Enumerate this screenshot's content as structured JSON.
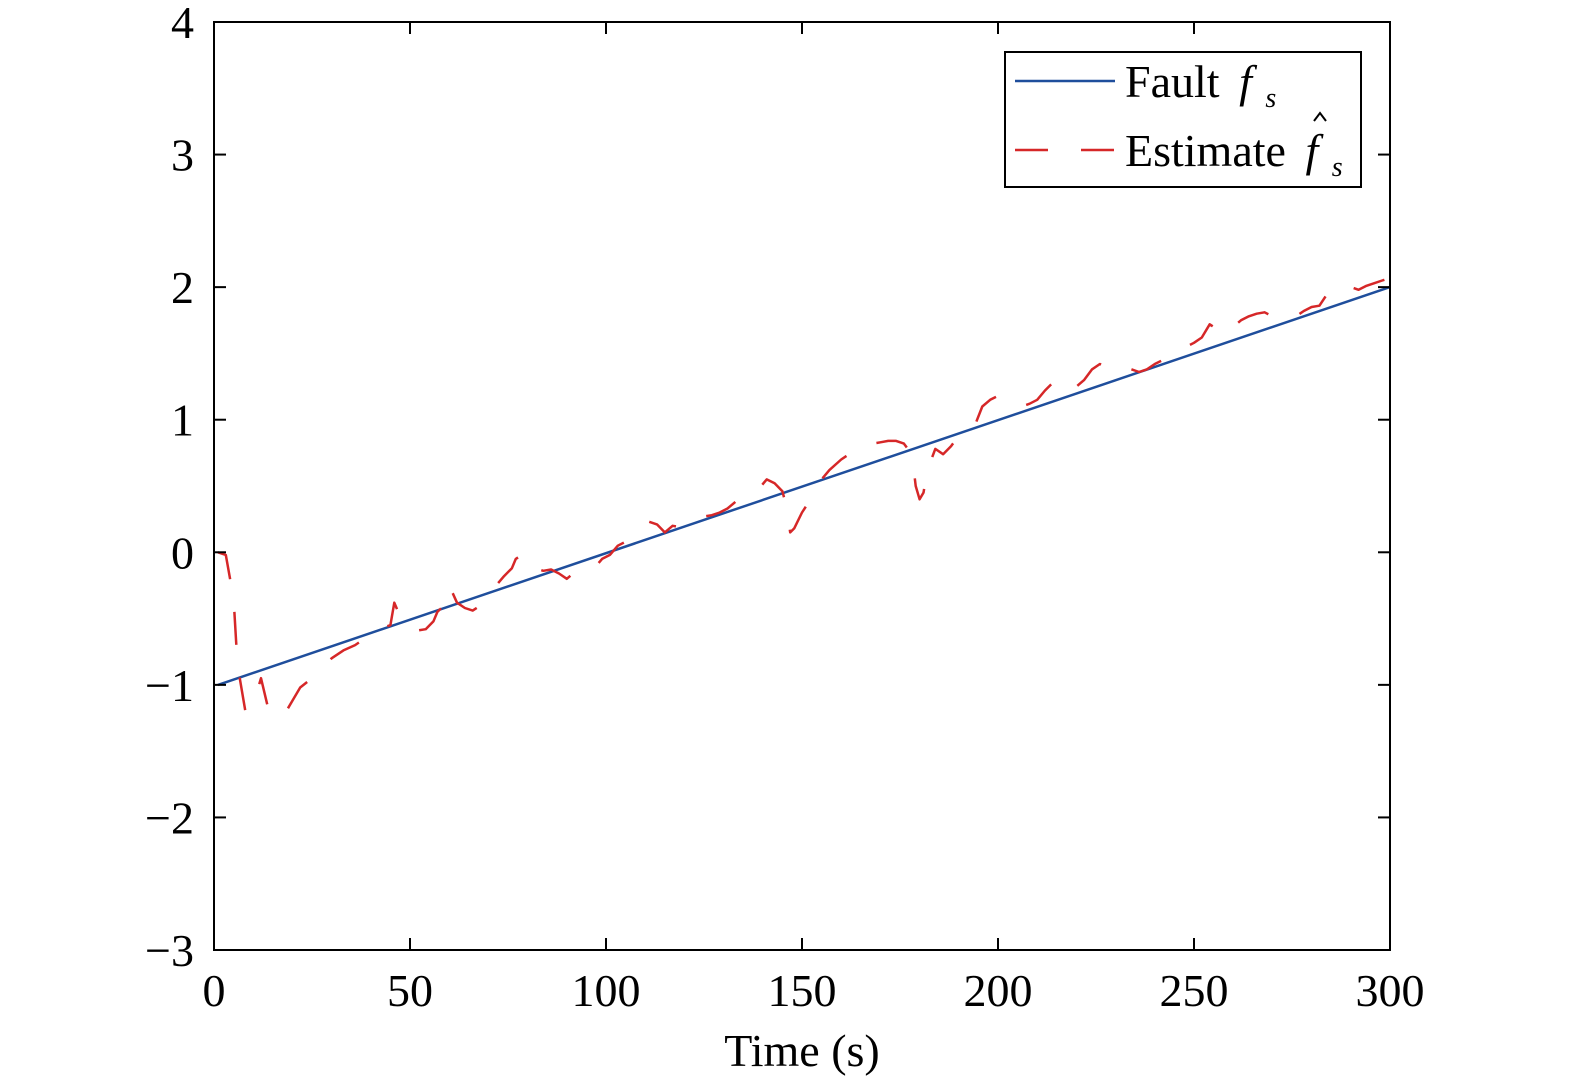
{
  "chart_data": {
    "type": "line",
    "xlabel": "Time (s)",
    "ylabel": "",
    "xlim": [
      0,
      300
    ],
    "ylim": [
      -3,
      4
    ],
    "xticks": [
      0,
      50,
      100,
      150,
      200,
      250,
      300
    ],
    "yticks": [
      -3,
      -2,
      -1,
      0,
      1,
      2,
      3,
      4
    ],
    "xtick_labels": [
      "0",
      "50",
      "100",
      "150",
      "200",
      "250",
      "300"
    ],
    "ytick_labels": [
      "−3",
      "−2",
      "−1",
      "0",
      "1",
      "2",
      "3",
      "4"
    ],
    "grid": false,
    "legend_position": "top-right",
    "series": [
      {
        "name": "Fault",
        "symbol": "f",
        "subscript": "s",
        "hat": false,
        "color": "#1f4e9c",
        "style": "solid",
        "x": [
          1,
          300
        ],
        "y": [
          -1.0,
          2.0
        ]
      },
      {
        "name": "Estimate",
        "symbol": "f",
        "subscript": "s",
        "hat": true,
        "color": "#d62728",
        "style": "dashed",
        "x": [
          1,
          3,
          5,
          6,
          8,
          10,
          12,
          14,
          16,
          18,
          20,
          22,
          25,
          28,
          30,
          33,
          36,
          39,
          42,
          45,
          46,
          48,
          50,
          52,
          54,
          56,
          57,
          58,
          60,
          62,
          64,
          66,
          68,
          70,
          72,
          74,
          76,
          77,
          78,
          80,
          82,
          84,
          86,
          88,
          90,
          92,
          95,
          97,
          99,
          101,
          103,
          105,
          107,
          109,
          111,
          113,
          115,
          117,
          119,
          121,
          123,
          125,
          127,
          129,
          131,
          133,
          135,
          137,
          139,
          141,
          143,
          145,
          146,
          147,
          148,
          150,
          152,
          155,
          157,
          160,
          162,
          164,
          166,
          168,
          170,
          172,
          174,
          176,
          177,
          178,
          179,
          180,
          181,
          182,
          184,
          186,
          188,
          190,
          192,
          194,
          196,
          198,
          200,
          202,
          204,
          206,
          208,
          210,
          212,
          214,
          216,
          218,
          220,
          222,
          224,
          226,
          228,
          230,
          232,
          234,
          236,
          238,
          240,
          242,
          244,
          246,
          248,
          250,
          252,
          254,
          256,
          258,
          260,
          262,
          264,
          266,
          268,
          270,
          272,
          274,
          276,
          278,
          280,
          282,
          284,
          286,
          288,
          290,
          292,
          294,
          296,
          298,
          300
        ],
        "y": [
          0.0,
          -0.02,
          -0.35,
          -0.85,
          -1.2,
          -1.15,
          -0.95,
          -1.2,
          -1.25,
          -1.22,
          -1.12,
          -1.02,
          -0.95,
          -0.88,
          -0.8,
          -0.74,
          -0.7,
          -0.64,
          -0.58,
          -0.55,
          -0.38,
          -0.52,
          -0.57,
          -0.59,
          -0.58,
          -0.52,
          -0.45,
          -0.42,
          -0.25,
          -0.38,
          -0.42,
          -0.44,
          -0.4,
          -0.32,
          -0.25,
          -0.18,
          -0.12,
          -0.05,
          -0.03,
          -0.14,
          -0.12,
          -0.14,
          -0.13,
          -0.16,
          -0.2,
          -0.15,
          -0.15,
          -0.12,
          -0.05,
          -0.02,
          0.05,
          0.08,
          0.12,
          0.18,
          0.23,
          0.21,
          0.15,
          0.2,
          0.19,
          0.22,
          0.26,
          0.27,
          0.28,
          0.3,
          0.33,
          0.38,
          0.4,
          0.42,
          0.48,
          0.55,
          0.52,
          0.46,
          0.35,
          0.15,
          0.18,
          0.3,
          0.39,
          0.55,
          0.62,
          0.7,
          0.74,
          0.76,
          0.8,
          0.82,
          0.83,
          0.84,
          0.84,
          0.82,
          0.78,
          0.75,
          0.5,
          0.4,
          0.45,
          0.62,
          0.78,
          0.74,
          0.8,
          0.88,
          0.92,
          0.95,
          1.1,
          1.15,
          1.18,
          1.15,
          1.12,
          1.1,
          1.12,
          1.15,
          1.22,
          1.28,
          1.25,
          1.2,
          1.25,
          1.3,
          1.38,
          1.42,
          1.4,
          1.38,
          1.35,
          1.38,
          1.36,
          1.38,
          1.42,
          1.45,
          1.48,
          1.52,
          1.55,
          1.58,
          1.62,
          1.72,
          1.68,
          1.64,
          1.7,
          1.75,
          1.78,
          1.8,
          1.81,
          1.78,
          1.8,
          1.79,
          1.78,
          1.82,
          1.85,
          1.86,
          1.95,
          2.0,
          2.02,
          2.0,
          1.98,
          2.01,
          2.03,
          2.05,
          2.07
        ]
      }
    ]
  }
}
